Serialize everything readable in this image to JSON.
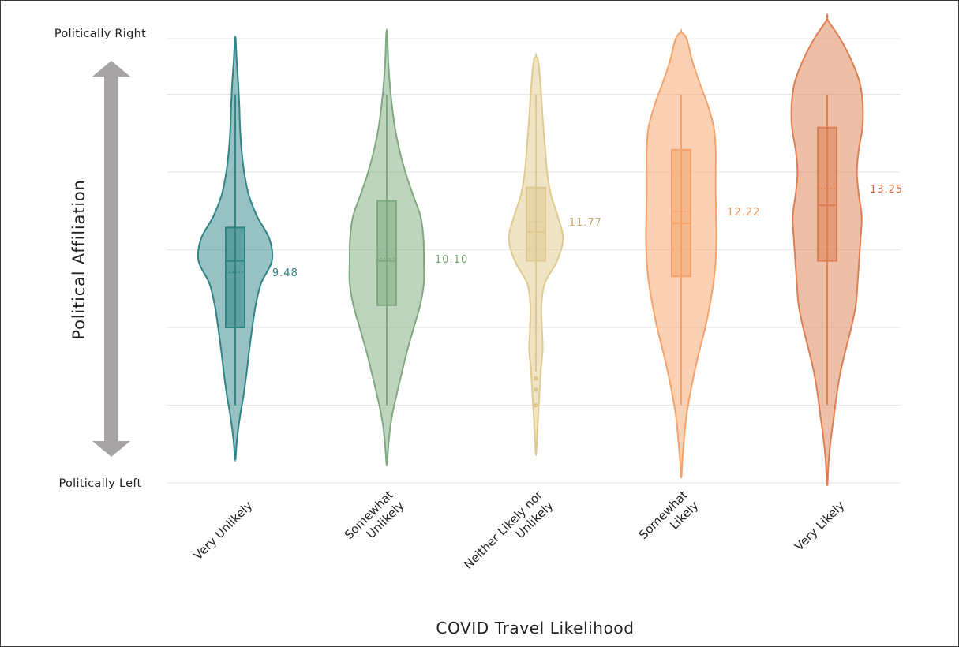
{
  "chart_data": {
    "type": "violin",
    "xlabel": "COVID Travel Likelihood",
    "ylabel": "Political Affiliation",
    "y_top_label": "Politically Right",
    "y_bottom_label": "Politically Left",
    "ylim": [
      0,
      21
    ],
    "grid": true,
    "categories": [
      {
        "label_lines": [
          "Very Unlikely"
        ],
        "color": "#2f8486",
        "label_color": "#2f8486",
        "mean": 9.48,
        "mean_label": "9.48",
        "median": 10,
        "q1": 7,
        "q3": 11.5,
        "whisker_low": 3.5,
        "whisker_high": 17.5,
        "outliers": [],
        "density": [
          [
            1.1,
            0.01
          ],
          [
            2,
            0.05
          ],
          [
            3,
            0.13
          ],
          [
            4,
            0.23
          ],
          [
            5,
            0.31
          ],
          [
            6,
            0.38
          ],
          [
            7,
            0.46
          ],
          [
            8,
            0.55
          ],
          [
            9,
            0.7
          ],
          [
            10,
            0.99
          ],
          [
            11,
            0.92
          ],
          [
            12,
            0.59
          ],
          [
            13,
            0.36
          ],
          [
            14,
            0.24
          ],
          [
            15,
            0.17
          ],
          [
            16,
            0.13
          ],
          [
            17,
            0.11
          ],
          [
            18,
            0.08
          ],
          [
            19,
            0.04
          ],
          [
            20,
            0.01
          ]
        ]
      },
      {
        "label_lines": [
          "Somewhat",
          "Unlikely"
        ],
        "color": "#7ea97f",
        "label_color": "#6f9e72",
        "mean": 10.1,
        "mean_label": "10.10",
        "median": 10,
        "q1": 8,
        "q3": 12.7,
        "whisker_low": 3.5,
        "whisker_high": 17.5,
        "outliers": [],
        "density": [
          [
            0.9,
            0.01
          ],
          [
            2,
            0.06
          ],
          [
            3,
            0.14
          ],
          [
            4,
            0.27
          ],
          [
            5,
            0.41
          ],
          [
            6,
            0.56
          ],
          [
            7,
            0.73
          ],
          [
            8,
            0.9
          ],
          [
            9,
            1
          ],
          [
            10,
            1
          ],
          [
            11,
            0.99
          ],
          [
            12,
            0.91
          ],
          [
            13,
            0.7
          ],
          [
            14,
            0.5
          ],
          [
            15,
            0.34
          ],
          [
            16,
            0.22
          ],
          [
            17,
            0.14
          ],
          [
            18,
            0.08
          ],
          [
            19,
            0.04
          ],
          [
            20,
            0.02
          ],
          [
            20.3,
            0.01
          ]
        ]
      },
      {
        "label_lines": [
          "Neither Likely nor",
          "Unlikely"
        ],
        "color": "#dfc98e",
        "label_color": "#c9a86a",
        "mean": 11.77,
        "mean_label": "11.77",
        "median": 11.3,
        "q1": 10,
        "q3": 13.3,
        "whisker_low": 5,
        "whisker_high": 17.5,
        "outliers": [
          3.5,
          4.2,
          4.7
        ],
        "density": [
          [
            1.4,
            0.01
          ],
          [
            3,
            0.06
          ],
          [
            5,
            0.13
          ],
          [
            6,
            0.18
          ],
          [
            7,
            0.16
          ],
          [
            8,
            0.15
          ],
          [
            9,
            0.24
          ],
          [
            10,
            0.57
          ],
          [
            11,
            0.73
          ],
          [
            12,
            0.59
          ],
          [
            13,
            0.4
          ],
          [
            14,
            0.3
          ],
          [
            15,
            0.25
          ],
          [
            16,
            0.2
          ],
          [
            17,
            0.16
          ],
          [
            18,
            0.12
          ],
          [
            19,
            0.06
          ],
          [
            19.2,
            0.01
          ]
        ]
      },
      {
        "label_lines": [
          "Somewhat",
          "Likely"
        ],
        "color": "#f5a36a",
        "label_color": "#f0955a",
        "mean": 12.22,
        "mean_label": "12.22",
        "median": 11.7,
        "q1": 9.3,
        "q3": 15,
        "whisker_low": 3.5,
        "whisker_high": 17.5,
        "outliers": [],
        "density": [
          [
            0.3,
            0.01
          ],
          [
            1,
            0.03
          ],
          [
            2,
            0.08
          ],
          [
            3,
            0.14
          ],
          [
            4,
            0.24
          ],
          [
            5,
            0.36
          ],
          [
            6,
            0.5
          ],
          [
            7,
            0.65
          ],
          [
            8,
            0.77
          ],
          [
            9,
            0.87
          ],
          [
            10,
            0.93
          ],
          [
            11,
            0.95
          ],
          [
            12,
            0.94
          ],
          [
            13,
            0.93
          ],
          [
            14,
            0.93
          ],
          [
            15,
            0.93
          ],
          [
            16,
            0.88
          ],
          [
            17,
            0.72
          ],
          [
            18,
            0.5
          ],
          [
            19,
            0.3
          ],
          [
            20,
            0.15
          ],
          [
            20.3,
            0.01
          ]
        ]
      },
      {
        "label_lines": [
          "Very Likely"
        ],
        "color": "#dd7f52",
        "label_color": "#d8693a",
        "mean": 13.25,
        "mean_label": "13.25",
        "median": 12.5,
        "q1": 10,
        "q3": 16,
        "whisker_low": 3.5,
        "whisker_high": 17.5,
        "outliers": [],
        "density": [
          [
            0,
            0.01
          ],
          [
            1,
            0.04
          ],
          [
            2,
            0.1
          ],
          [
            3,
            0.18
          ],
          [
            4,
            0.26
          ],
          [
            5,
            0.36
          ],
          [
            6,
            0.5
          ],
          [
            7,
            0.65
          ],
          [
            8,
            0.77
          ],
          [
            9,
            0.82
          ],
          [
            10,
            0.86
          ],
          [
            11,
            0.9
          ],
          [
            12,
            0.93
          ],
          [
            13,
            0.85
          ],
          [
            14,
            0.8
          ],
          [
            15,
            0.85
          ],
          [
            16,
            0.95
          ],
          [
            17,
            0.96
          ],
          [
            18,
            0.88
          ],
          [
            19,
            0.66
          ],
          [
            20,
            0.35
          ],
          [
            20.8,
            0.03
          ],
          [
            21,
            0.01
          ]
        ]
      }
    ]
  }
}
